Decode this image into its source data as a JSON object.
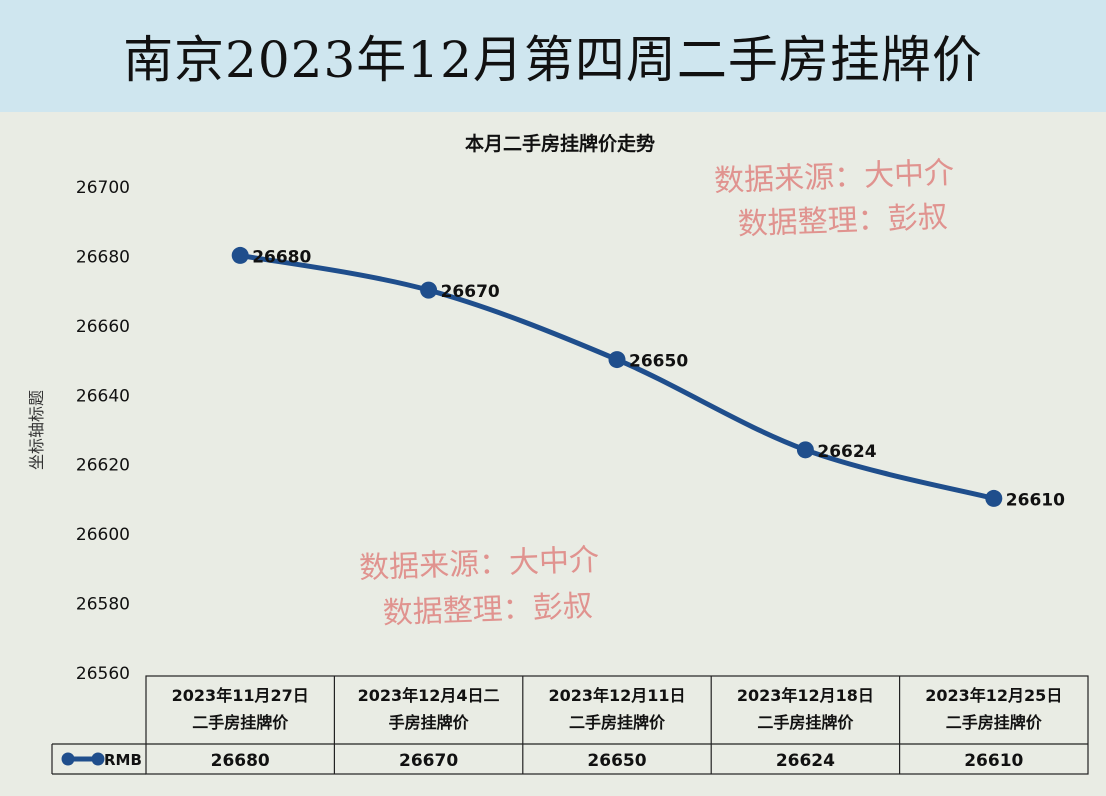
{
  "header": {
    "title": "南京2023年12月第四周二手房挂牌价"
  },
  "watermarks": [
    {
      "source": "数据来源：大中介",
      "editor": "数据整理：彭叔"
    },
    {
      "source": "数据来源：大中介",
      "editor": "数据整理：彭叔"
    }
  ],
  "colors": {
    "line": "#1f4e8c",
    "banner": "#cfe6ef",
    "plot_bg": "#e9ece4",
    "watermark": "#e08a86"
  },
  "chart_data": {
    "type": "line",
    "title": "本月二手房挂牌价走势",
    "ylabel": "坐标轴标题",
    "xlabel": "",
    "ylim": [
      26560,
      26700
    ],
    "yticks": [
      26560,
      26580,
      26600,
      26620,
      26640,
      26660,
      26680,
      26700
    ],
    "categories": [
      [
        "2023年11月27日",
        "二手房挂牌价"
      ],
      [
        "2023年12月4日二",
        "手房挂牌价"
      ],
      [
        "2023年12月11日",
        "二手房挂牌价"
      ],
      [
        "2023年12月18日",
        "二手房挂牌价"
      ],
      [
        "2023年12月25日",
        "二手房挂牌价"
      ]
    ],
    "series": [
      {
        "name": "RMB",
        "values": [
          26680,
          26670,
          26650,
          26624,
          26610
        ],
        "color": "#1f4e8c"
      }
    ],
    "data_labels": true,
    "legend": "table",
    "grid": false
  }
}
